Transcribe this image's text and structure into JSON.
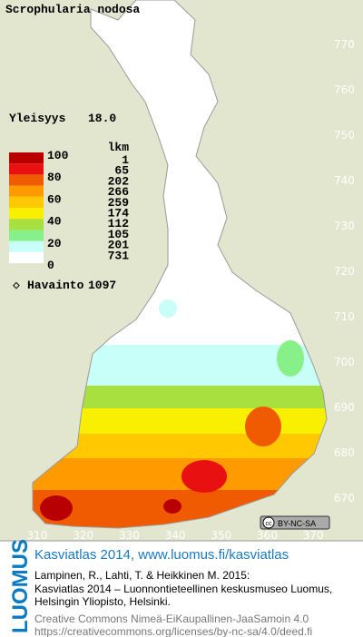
{
  "title": "Scrophularia nodosa",
  "frequency_label": "Yleisyys",
  "frequency": "18.0",
  "legend": {
    "levels": [
      100,
      80,
      60,
      40,
      20,
      0
    ],
    "count_header": "lkm",
    "counts": [
      1,
      65,
      202,
      266,
      259,
      174,
      112,
      105,
      201,
      731
    ],
    "colors": [
      "#b80000",
      "#e81010",
      "#f05a00",
      "#ff9a00",
      "#ffc800",
      "#f8f000",
      "#a8e040",
      "#88f088",
      "#c8fff8",
      "#ffffff"
    ]
  },
  "observations_label": "Havainto",
  "observations": 1097,
  "map_axes": {
    "yticks": [
      770,
      760,
      750,
      740,
      730,
      720,
      710,
      700,
      690,
      680,
      670
    ],
    "xticks": [
      310,
      320,
      330,
      340,
      350,
      360,
      370
    ]
  },
  "license_badge": "BY-NC-SA",
  "footer": {
    "brand": "LUOMUS",
    "link": "Kasviatlas 2014, www.luomus.fi/kasviatlas",
    "citation": [
      "Lampinen, R., Lahti, T. & Heikkinen M. 2015:",
      "Kasviatlas 2014 – Luonnontieteellinen keskusmuseo Luomus,",
      "Helsingin Yliopisto, Helsinki."
    ],
    "license": [
      "Creative Commons Nimeä-EiKaupallinen-JaaSamoin 4.0",
      "https://creativecommons.org/licenses/by-nc-sa/4.0/deed.fi"
    ]
  }
}
